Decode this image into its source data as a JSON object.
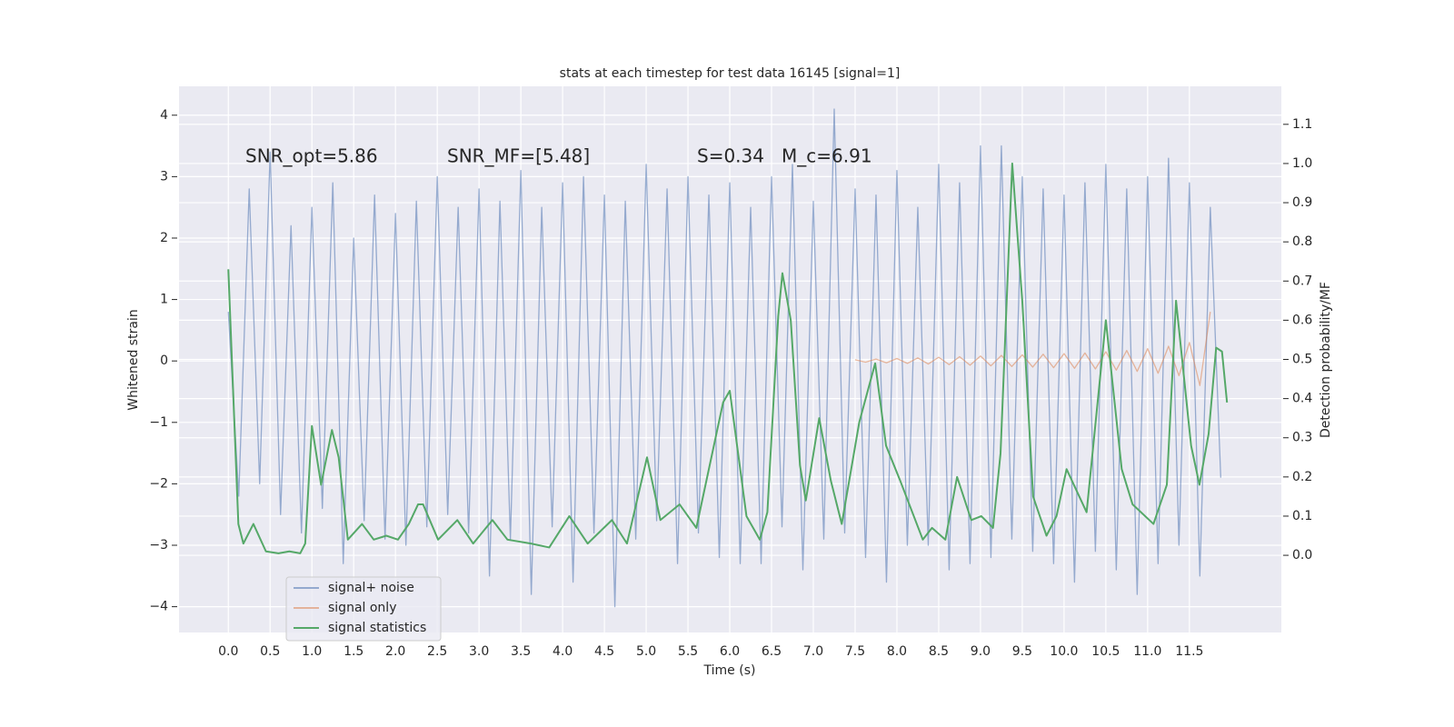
{
  "chart_data": {
    "type": "line",
    "title": "stats at each timestep for test data 16145 [signal=1]",
    "xlabel": "Time (s)",
    "ylabel": "Whitened strain",
    "y2label": "Detection probability/MF",
    "annotations": [
      "SNR_opt=5.86",
      "SNR_MF=[5.48]",
      "S=0.34",
      "M_c=6.91"
    ],
    "grid": true,
    "legend": "lower left",
    "xlim": [
      -0.59,
      12.6
    ],
    "ylim": [
      -4.42,
      4.47
    ],
    "y2lim": [
      -0.197,
      1.197
    ],
    "xticks": [
      {
        "value": 0,
        "label": "0.0"
      },
      0.5,
      {
        "value": 1,
        "label": "1.0"
      },
      1.5,
      {
        "value": 2,
        "label": "2.0"
      },
      2.5,
      {
        "value": 3,
        "label": "3.0"
      },
      3.5,
      {
        "value": 4,
        "label": "4.0"
      },
      4.5,
      {
        "value": 5,
        "label": "5.0"
      },
      5.5,
      {
        "value": 6,
        "label": "6.0"
      },
      6.5,
      {
        "value": 7,
        "label": "7.0"
      },
      7.5,
      {
        "value": 8,
        "label": "8.0"
      },
      8.5,
      {
        "value": 9,
        "label": "9.0"
      },
      9.5,
      {
        "value": 10,
        "label": "10.0"
      },
      10.5,
      {
        "value": 11,
        "label": "11.0"
      },
      11.5
    ],
    "yticks": [
      {
        "value": -4,
        "label": "−4"
      },
      {
        "value": -3,
        "label": "−3"
      },
      {
        "value": -2,
        "label": "−2"
      },
      {
        "value": -1,
        "label": "−1"
      },
      0,
      1,
      2,
      3,
      4
    ],
    "y2ticks": [
      {
        "value": 0,
        "label": "0.0"
      },
      0.1,
      0.2,
      0.3,
      0.4,
      0.5,
      0.6,
      0.7,
      0.8,
      0.9,
      {
        "value": 1,
        "label": "1.0"
      },
      1.1
    ],
    "series": [
      {
        "name": "signal+ noise",
        "color": "#4c72b0",
        "x": [
          0,
          0.125,
          0.25,
          0.375,
          0.5,
          0.625,
          0.75,
          0.875,
          1,
          1.125,
          1.25,
          1.375,
          1.5,
          1.625,
          1.75,
          1.875,
          2,
          2.125,
          2.25,
          2.375,
          2.5,
          2.625,
          2.75,
          2.875,
          3,
          3.125,
          3.25,
          3.375,
          3.5,
          3.625,
          3.75,
          3.875,
          4,
          4.125,
          4.25,
          4.375,
          4.5,
          4.625,
          4.75,
          4.875,
          5,
          5.125,
          5.25,
          5.375,
          5.5,
          5.625,
          5.75,
          5.875,
          6,
          6.125,
          6.25,
          6.375,
          6.5,
          6.625,
          6.75,
          6.875,
          7,
          7.125,
          7.25,
          7.375,
          7.5,
          7.625,
          7.75,
          7.875,
          8,
          8.125,
          8.25,
          8.375,
          8.5,
          8.625,
          8.75,
          8.875,
          9,
          9.125,
          9.25,
          9.375,
          9.5,
          9.625,
          9.75,
          9.875,
          10,
          10.125,
          10.25,
          10.375,
          10.5,
          10.625,
          10.75,
          10.875,
          11,
          11.125,
          11.25,
          11.375,
          11.5,
          11.625,
          11.75,
          11.875
        ],
        "values": [
          0.8,
          -2.2,
          2.8,
          -2.0,
          3.4,
          -2.5,
          2.2,
          -2.8,
          2.5,
          -2.4,
          2.9,
          -3.3,
          2.0,
          -2.6,
          2.7,
          -2.9,
          2.4,
          -3.0,
          2.6,
          -2.7,
          3.0,
          -2.5,
          2.5,
          -2.8,
          2.8,
          -3.5,
          2.6,
          -2.9,
          3.1,
          -3.8,
          2.5,
          -2.7,
          2.9,
          -3.6,
          3.0,
          -2.8,
          2.7,
          -4.0,
          2.6,
          -2.9,
          3.2,
          -2.6,
          2.8,
          -3.3,
          3.0,
          -2.8,
          2.7,
          -3.2,
          2.9,
          -3.3,
          2.5,
          -3.3,
          3.0,
          -2.7,
          3.2,
          -3.4,
          2.6,
          -2.9,
          4.1,
          -2.8,
          2.8,
          -3.2,
          2.7,
          -3.6,
          3.1,
          -3.0,
          2.5,
          -3.0,
          3.2,
          -3.4,
          2.9,
          -3.3,
          3.5,
          -3.2,
          3.5,
          -2.9,
          3.0,
          -3.1,
          2.8,
          -3.3,
          2.7,
          -3.6,
          2.9,
          -3.1,
          3.2,
          -3.4,
          2.8,
          -3.8,
          3.0,
          -3.3,
          3.3,
          -3.0,
          2.9,
          -3.5,
          2.5,
          -1.9
        ]
      },
      {
        "name": "signal only",
        "color": "#dd8452",
        "x": [
          7.5,
          7.625,
          7.75,
          7.875,
          8,
          8.125,
          8.25,
          8.375,
          8.5,
          8.625,
          8.75,
          8.875,
          9,
          9.125,
          9.25,
          9.375,
          9.5,
          9.625,
          9.75,
          9.875,
          10,
          10.125,
          10.25,
          10.375,
          10.5,
          10.625,
          10.75,
          10.875,
          11,
          11.125,
          11.25,
          11.375,
          11.5,
          11.625,
          11.75
        ],
        "values": [
          0.02,
          -0.02,
          0.03,
          -0.03,
          0.04,
          -0.04,
          0.05,
          -0.05,
          0.06,
          -0.06,
          0.07,
          -0.07,
          0.08,
          -0.08,
          0.09,
          -0.09,
          0.1,
          -0.1,
          0.11,
          -0.11,
          0.12,
          -0.12,
          0.13,
          -0.13,
          0.15,
          -0.15,
          0.17,
          -0.17,
          0.2,
          -0.2,
          0.24,
          -0.24,
          0.3,
          -0.4,
          0.8
        ]
      },
      {
        "name": "signal statistics",
        "color": "#55a868",
        "axis": "y2",
        "x": [
          0,
          0.12,
          0.18,
          0.3,
          0.45,
          0.6,
          0.73,
          0.86,
          0.92,
          1.0,
          1.11,
          1.24,
          1.32,
          1.43,
          1.6,
          1.74,
          1.89,
          2.03,
          2.16,
          2.27,
          2.33,
          2.51,
          2.74,
          2.93,
          3.16,
          3.34,
          3.62,
          3.84,
          4.08,
          4.3,
          4.59,
          4.77,
          5.01,
          5.17,
          5.4,
          5.6,
          5.92,
          6.0,
          6.2,
          6.36,
          6.45,
          6.58,
          6.63,
          6.73,
          6.84,
          6.91,
          7.07,
          7.21,
          7.34,
          7.55,
          7.74,
          7.87,
          8.04,
          8.31,
          8.42,
          8.58,
          8.72,
          8.89,
          9.01,
          9.15,
          9.24,
          9.38,
          9.5,
          9.63,
          9.79,
          9.91,
          10.03,
          10.27,
          10.5,
          10.69,
          10.82,
          11.07,
          11.23,
          11.34,
          11.52,
          11.62,
          11.73,
          11.82,
          11.89,
          11.95
        ],
        "values": [
          0.73,
          0.08,
          0.03,
          0.08,
          0.01,
          0.005,
          0.01,
          0.005,
          0.03,
          0.33,
          0.18,
          0.32,
          0.25,
          0.04,
          0.08,
          0.04,
          0.05,
          0.04,
          0.08,
          0.13,
          0.13,
          0.04,
          0.09,
          0.03,
          0.09,
          0.04,
          0.03,
          0.02,
          0.1,
          0.03,
          0.09,
          0.03,
          0.25,
          0.09,
          0.13,
          0.07,
          0.39,
          0.42,
          0.1,
          0.04,
          0.11,
          0.61,
          0.72,
          0.6,
          0.23,
          0.14,
          0.35,
          0.19,
          0.08,
          0.34,
          0.49,
          0.28,
          0.19,
          0.04,
          0.07,
          0.04,
          0.2,
          0.09,
          0.1,
          0.07,
          0.26,
          1.0,
          0.65,
          0.15,
          0.05,
          0.1,
          0.22,
          0.11,
          0.6,
          0.22,
          0.13,
          0.08,
          0.18,
          0.65,
          0.28,
          0.18,
          0.31,
          0.53,
          0.52,
          0.39
        ]
      }
    ]
  }
}
